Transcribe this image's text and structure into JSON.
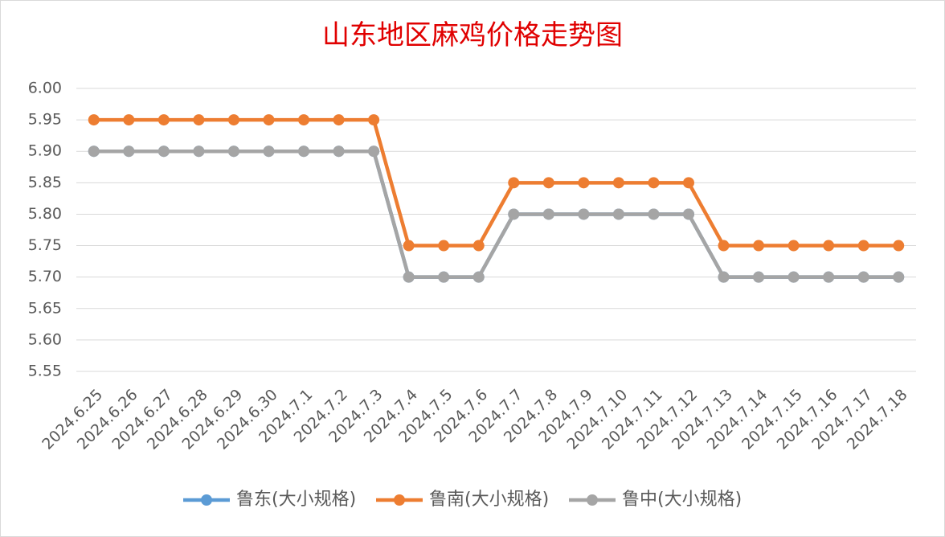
{
  "chart_data": {
    "type": "line",
    "title": "山东地区麻鸡价格走势图",
    "categories": [
      "2024.6.25",
      "2024.6.26",
      "2024.6.27",
      "2024.6.28",
      "2024.6.29",
      "2024.6.30",
      "2024.7.1",
      "2024.7.2",
      "2024.7.3",
      "2024.7.4",
      "2024.7.5",
      "2024.7.6",
      "2024.7.7",
      "2024.7.8",
      "2024.7.9",
      "2024.7.10",
      "2024.7.11",
      "2024.7.12",
      "2024.7.13",
      "2024.7.14",
      "2024.7.15",
      "2024.7.16",
      "2024.7.17",
      "2024.7.18"
    ],
    "series": [
      {
        "name": "鲁东(大小规格)",
        "color": "#5b9bd5",
        "values": [
          5.9,
          5.9,
          5.9,
          5.9,
          5.9,
          5.9,
          5.9,
          5.9,
          5.9,
          5.7,
          5.7,
          5.7,
          5.8,
          5.8,
          5.8,
          5.8,
          5.8,
          5.8,
          5.7,
          5.7,
          5.7,
          5.7,
          5.7,
          5.7
        ]
      },
      {
        "name": "鲁南(大小规格)",
        "color": "#ed7d31",
        "values": [
          5.95,
          5.95,
          5.95,
          5.95,
          5.95,
          5.95,
          5.95,
          5.95,
          5.95,
          5.75,
          5.75,
          5.75,
          5.85,
          5.85,
          5.85,
          5.85,
          5.85,
          5.85,
          5.75,
          5.75,
          5.75,
          5.75,
          5.75,
          5.75
        ]
      },
      {
        "name": "鲁中(大小规格)",
        "color": "#a5a5a5",
        "values": [
          5.9,
          5.9,
          5.9,
          5.9,
          5.9,
          5.9,
          5.9,
          5.9,
          5.9,
          5.7,
          5.7,
          5.7,
          5.8,
          5.8,
          5.8,
          5.8,
          5.8,
          5.8,
          5.7,
          5.7,
          5.7,
          5.7,
          5.7,
          5.7
        ]
      }
    ],
    "ylim": [
      5.55,
      6.0
    ],
    "yticks": [
      5.55,
      {
        "value": 5.6,
        "label": "5.60"
      },
      5.65,
      {
        "value": 5.7,
        "label": "5.70"
      },
      5.75,
      {
        "value": 5.8,
        "label": "5.80"
      },
      5.85,
      {
        "value": 5.9,
        "label": "5.90"
      },
      5.95,
      {
        "value": 6.0,
        "label": "6.00"
      }
    ],
    "grid": true,
    "legend": "bottom"
  }
}
